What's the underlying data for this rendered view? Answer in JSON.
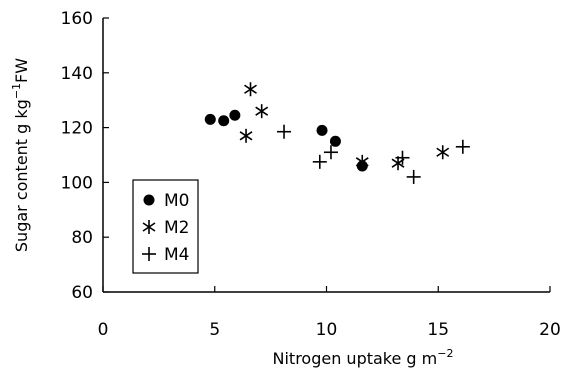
{
  "chart_data": {
    "type": "scatter",
    "title": "",
    "xlabel": "Nitrogen uptake g m",
    "xlabel_sup": "−2",
    "ylabel": "Sugar content g kg",
    "ylabel_sup": "−1",
    "ylabel_suffix": "FW",
    "xlim": [
      0,
      20
    ],
    "ylim": [
      60,
      160
    ],
    "xticks": [
      "0",
      "5",
      "10",
      "15",
      "20"
    ],
    "yticks": [
      "60",
      "80",
      "100",
      "120",
      "140",
      "160"
    ],
    "grid": false,
    "legend_position": "left-middle",
    "series": [
      {
        "name": "M0",
        "marker": "circle",
        "points": [
          [
            4.8,
            123
          ],
          [
            5.4,
            122.5
          ],
          [
            5.9,
            124.5
          ],
          [
            9.8,
            119
          ],
          [
            10.4,
            115
          ],
          [
            11.6,
            106
          ]
        ]
      },
      {
        "name": "M2",
        "marker": "asterisk",
        "points": [
          [
            6.4,
            117
          ],
          [
            6.6,
            134
          ],
          [
            7.1,
            126
          ],
          [
            11.6,
            107.5
          ],
          [
            13.2,
            107
          ],
          [
            15.2,
            111
          ]
        ]
      },
      {
        "name": "M4",
        "marker": "plus",
        "points": [
          [
            8.1,
            118.5
          ],
          [
            9.7,
            107.5
          ],
          [
            10.2,
            111
          ],
          [
            13.4,
            109
          ],
          [
            13.9,
            102
          ],
          [
            16.1,
            113
          ]
        ]
      }
    ]
  }
}
